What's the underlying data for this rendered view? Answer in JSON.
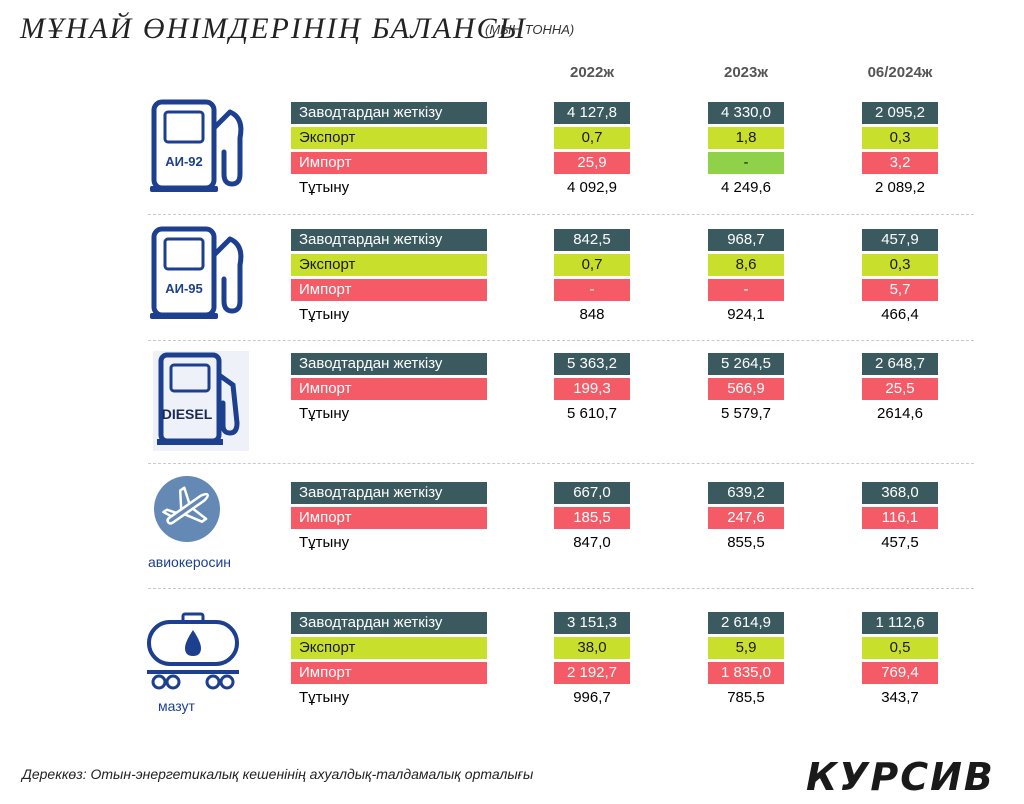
{
  "header": {
    "title": "МҰНАЙ ӨНІМДЕРІНІҢ БАЛАНСЫ",
    "unit": "(МЫҢ ТОННА)"
  },
  "footer": {
    "source": "Дереккөз: Отын-энергетикалық кешенінің ахуалдық-талдамалық орталығы",
    "brand": "КУРСИВ"
  },
  "colors": {
    "supply": "#3a5a5f",
    "export": "#c8df2c",
    "import": "#f45b67",
    "consumption": "#6dc3b0",
    "dash_cell": "#8fd148",
    "icon_blue": "#1d3f8f"
  },
  "chart_data": {
    "type": "table",
    "columns": [
      "2022ж",
      "2023ж",
      "06/2024ж"
    ],
    "products": [
      {
        "icon": "fuel-pump-icon",
        "icon_label": "АИ-92",
        "caption": "",
        "rows": [
          {
            "label": "Заводтардан жеткізу",
            "kind": "supply",
            "values": [
              "4 127,8",
              "4 330,0",
              "2 095,2"
            ]
          },
          {
            "label": "Экспорт",
            "kind": "export",
            "values": [
              "0,7",
              "1,8",
              "0,3"
            ]
          },
          {
            "label": "Импорт",
            "kind": "import",
            "values": [
              "25,9",
              "-",
              "3,2"
            ]
          },
          {
            "label": "Тұтыну",
            "kind": "consumption",
            "values": [
              "4 092,9",
              "4 249,6",
              "2 089,2"
            ]
          }
        ]
      },
      {
        "icon": "fuel-pump-icon",
        "icon_label": "АИ-95",
        "caption": "",
        "rows": [
          {
            "label": "Заводтардан жеткізу",
            "kind": "supply",
            "values": [
              "842,5",
              "968,7",
              "457,9"
            ]
          },
          {
            "label": "Экспорт",
            "kind": "export",
            "values": [
              "0,7",
              "8,6",
              "0,3"
            ]
          },
          {
            "label": "Импорт",
            "kind": "import",
            "values": [
              "-",
              "-",
              "5,7"
            ]
          },
          {
            "label": "Тұтыну",
            "kind": "consumption",
            "values": [
              "848",
              "924,1",
              "466,4"
            ]
          }
        ]
      },
      {
        "icon": "diesel-pump-icon",
        "icon_label": "DIESEL",
        "caption": "",
        "rows": [
          {
            "label": "Заводтардан жеткізу",
            "kind": "supply",
            "values": [
              "5 363,2",
              "5 264,5",
              "2 648,7"
            ]
          },
          {
            "label": "Импорт",
            "kind": "import",
            "values": [
              "199,3",
              "566,9",
              "25,5"
            ]
          },
          {
            "label": "Тұтыну",
            "kind": "consumption",
            "values": [
              "5 610,7",
              "5 579,7",
              "2614,6"
            ]
          }
        ]
      },
      {
        "icon": "airplane-icon",
        "icon_label": "",
        "caption": "авиокеросин",
        "rows": [
          {
            "label": "Заводтардан жеткізу",
            "kind": "supply",
            "values": [
              "667,0",
              "639,2",
              "368,0"
            ]
          },
          {
            "label": "Импорт",
            "kind": "import",
            "values": [
              "185,5",
              "247,6",
              "116,1"
            ]
          },
          {
            "label": "Тұтыну",
            "kind": "consumption",
            "values": [
              "847,0",
              "855,5",
              "457,5"
            ]
          }
        ]
      },
      {
        "icon": "tank-wagon-icon",
        "icon_label": "",
        "caption": "мазут",
        "rows": [
          {
            "label": "Заводтардан жеткізу",
            "kind": "supply",
            "values": [
              "3 151,3",
              "2 614,9",
              "1 112,6"
            ]
          },
          {
            "label": "Экспорт",
            "kind": "export",
            "values": [
              "38,0",
              "5,9",
              "0,5"
            ]
          },
          {
            "label": "Импорт",
            "kind": "import",
            "values": [
              "2 192,7",
              "1 835,0",
              "769,4"
            ]
          },
          {
            "label": "Тұтыну",
            "kind": "consumption",
            "values": [
              "996,7",
              "785,5",
              "343,7"
            ]
          }
        ]
      }
    ]
  }
}
